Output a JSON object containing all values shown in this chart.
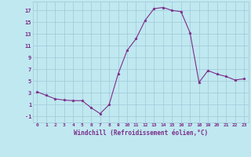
{
  "x": [
    0,
    1,
    2,
    3,
    4,
    5,
    6,
    7,
    8,
    9,
    10,
    11,
    12,
    13,
    14,
    15,
    16,
    17,
    18,
    19,
    20,
    21,
    22,
    23
  ],
  "y": [
    3.2,
    2.6,
    2.0,
    1.8,
    1.7,
    1.7,
    0.5,
    -0.5,
    1.0,
    6.2,
    10.2,
    12.2,
    15.3,
    17.3,
    17.5,
    17.0,
    16.8,
    13.2,
    4.8,
    6.8,
    6.2,
    5.8,
    5.2,
    5.4
  ],
  "line_color": "#7b2d8b",
  "marker": "*",
  "marker_color": "#7b2d8b",
  "bg_color": "#c0e8f0",
  "grid_color": "#a0c8d8",
  "xlabel": "Windchill (Refroidissement éolien,°C)",
  "xlabel_color": "#7b2d8b",
  "tick_color": "#7b2d8b",
  "ylim": [
    -2,
    18.5
  ],
  "yticks": [
    -1,
    1,
    3,
    5,
    7,
    9,
    11,
    13,
    15,
    17
  ],
  "xlim": [
    -0.5,
    23.5
  ],
  "xticks": [
    0,
    1,
    2,
    3,
    4,
    5,
    6,
    7,
    8,
    9,
    10,
    11,
    12,
    13,
    14,
    15,
    16,
    17,
    18,
    19,
    20,
    21,
    22,
    23
  ]
}
